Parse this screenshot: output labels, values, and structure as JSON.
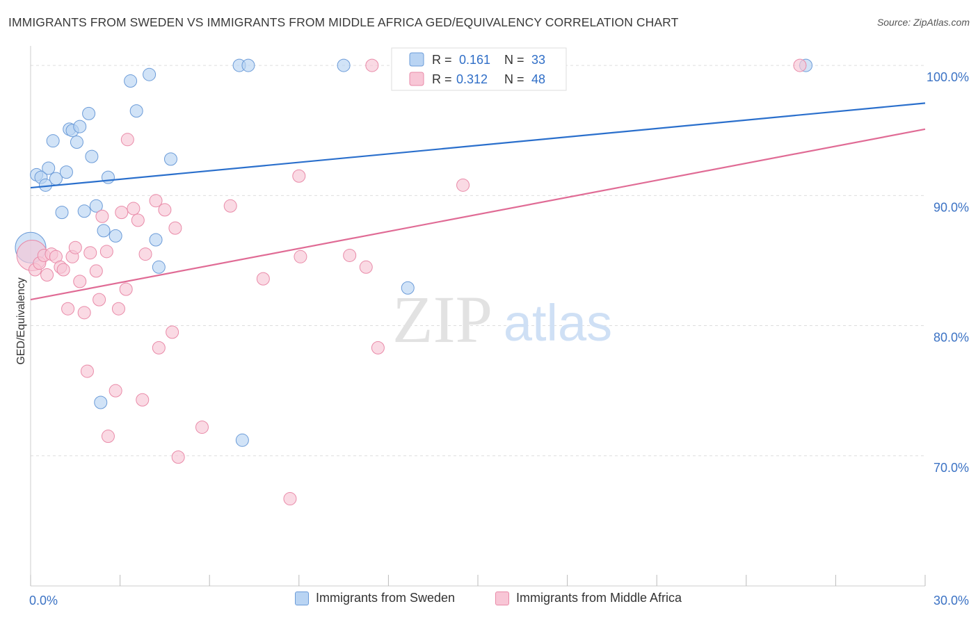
{
  "header": {
    "title": "IMMIGRANTS FROM SWEDEN VS IMMIGRANTS FROM MIDDLE AFRICA GED/EQUIVALENCY CORRELATION CHART",
    "source": "Source: ZipAtlas.com"
  },
  "watermark": {
    "zip": "ZIP",
    "atlas": "atlas"
  },
  "colors": {
    "blue_fill": "#b9d4f3",
    "blue_stroke": "#6b9bd8",
    "blue_line": "#2a6fcc",
    "pink_fill": "#f8c6d6",
    "pink_stroke": "#e98aa8",
    "pink_line": "#e06b95",
    "tick_label": "#3b72c4",
    "grid": "#dddddd"
  },
  "chart_data": {
    "type": "scatter",
    "title": "IMMIGRANTS FROM SWEDEN VS IMMIGRANTS FROM MIDDLE AFRICA GED/EQUIVALENCY CORRELATION CHART",
    "xlabel": "",
    "ylabel": "GED/Equivalency",
    "xlim": [
      0,
      30
    ],
    "ylim": [
      60,
      101.5
    ],
    "x_tick_labels": [
      {
        "value": 0,
        "label": "0.0%"
      },
      {
        "value": 30,
        "label": "30.0%"
      }
    ],
    "y_tick_labels": [
      {
        "value": 70,
        "label": "70.0%"
      },
      {
        "value": 80,
        "label": "80.0%"
      },
      {
        "value": 90,
        "label": "90.0%"
      },
      {
        "value": 100,
        "label": "100.0%"
      }
    ],
    "legend": [
      {
        "series": "Immigrants from Sweden",
        "r_label": "R =",
        "r_value": "0.161",
        "n_label": "N =",
        "n_value": "33"
      },
      {
        "series": "Immigrants from Middle Africa",
        "r_label": "R =",
        "r_value": "0.312",
        "n_label": "N =",
        "n_value": "48"
      }
    ],
    "series": [
      {
        "name": "Immigrants from Sweden",
        "color": "blue",
        "trend": {
          "x": [
            0,
            30
          ],
          "y": [
            90.6,
            97.1
          ]
        },
        "points": [
          {
            "x": 0.0,
            "y": 86.0,
            "big": true
          },
          {
            "x": 0.2,
            "y": 91.6
          },
          {
            "x": 0.35,
            "y": 91.4
          },
          {
            "x": 0.5,
            "y": 90.8
          },
          {
            "x": 0.6,
            "y": 92.1
          },
          {
            "x": 0.75,
            "y": 94.2
          },
          {
            "x": 0.85,
            "y": 91.3
          },
          {
            "x": 1.05,
            "y": 88.7
          },
          {
            "x": 1.2,
            "y": 91.8
          },
          {
            "x": 1.3,
            "y": 95.1
          },
          {
            "x": 1.4,
            "y": 95.0
          },
          {
            "x": 1.55,
            "y": 94.1
          },
          {
            "x": 1.65,
            "y": 95.3
          },
          {
            "x": 1.8,
            "y": 88.8
          },
          {
            "x": 1.95,
            "y": 96.3
          },
          {
            "x": 2.05,
            "y": 93.0
          },
          {
            "x": 2.2,
            "y": 89.2
          },
          {
            "x": 2.35,
            "y": 74.1
          },
          {
            "x": 2.45,
            "y": 87.3
          },
          {
            "x": 2.6,
            "y": 91.4
          },
          {
            "x": 2.85,
            "y": 86.9
          },
          {
            "x": 3.35,
            "y": 98.8
          },
          {
            "x": 3.55,
            "y": 96.5
          },
          {
            "x": 3.98,
            "y": 99.3
          },
          {
            "x": 4.2,
            "y": 86.6
          },
          {
            "x": 4.3,
            "y": 84.5
          },
          {
            "x": 4.7,
            "y": 92.8
          },
          {
            "x": 7.0,
            "y": 100.0
          },
          {
            "x": 7.1,
            "y": 71.2
          },
          {
            "x": 7.3,
            "y": 100.0
          },
          {
            "x": 10.5,
            "y": 100.0
          },
          {
            "x": 12.65,
            "y": 82.9
          },
          {
            "x": 26.0,
            "y": 100.0
          }
        ]
      },
      {
        "name": "Immigrants from Middle Africa",
        "color": "pink",
        "trend": {
          "x": [
            0,
            30
          ],
          "y": [
            82.0,
            95.1
          ]
        },
        "points": [
          {
            "x": 0.05,
            "y": 85.4,
            "big": true
          },
          {
            "x": 0.15,
            "y": 84.3
          },
          {
            "x": 0.3,
            "y": 84.8
          },
          {
            "x": 0.45,
            "y": 85.4
          },
          {
            "x": 0.55,
            "y": 83.9
          },
          {
            "x": 0.7,
            "y": 85.5
          },
          {
            "x": 0.85,
            "y": 85.3
          },
          {
            "x": 1.0,
            "y": 84.5
          },
          {
            "x": 1.1,
            "y": 84.3
          },
          {
            "x": 1.25,
            "y": 81.3
          },
          {
            "x": 1.4,
            "y": 85.3
          },
          {
            "x": 1.5,
            "y": 86.0
          },
          {
            "x": 1.65,
            "y": 83.4
          },
          {
            "x": 1.8,
            "y": 81.0
          },
          {
            "x": 1.9,
            "y": 76.5
          },
          {
            "x": 2.0,
            "y": 85.6
          },
          {
            "x": 2.2,
            "y": 84.2
          },
          {
            "x": 2.3,
            "y": 82.0
          },
          {
            "x": 2.4,
            "y": 88.4
          },
          {
            "x": 2.55,
            "y": 85.7
          },
          {
            "x": 2.6,
            "y": 71.5
          },
          {
            "x": 2.85,
            "y": 75.0
          },
          {
            "x": 2.95,
            "y": 81.3
          },
          {
            "x": 3.05,
            "y": 88.7
          },
          {
            "x": 3.2,
            "y": 82.8
          },
          {
            "x": 3.25,
            "y": 94.3
          },
          {
            "x": 3.45,
            "y": 89.0
          },
          {
            "x": 3.6,
            "y": 88.1
          },
          {
            "x": 3.75,
            "y": 74.3
          },
          {
            "x": 3.85,
            "y": 85.5
          },
          {
            "x": 4.2,
            "y": 89.6
          },
          {
            "x": 4.3,
            "y": 78.3
          },
          {
            "x": 4.5,
            "y": 88.9
          },
          {
            "x": 4.75,
            "y": 79.5
          },
          {
            "x": 4.85,
            "y": 87.5
          },
          {
            "x": 4.95,
            "y": 69.9
          },
          {
            "x": 5.75,
            "y": 72.2
          },
          {
            "x": 6.7,
            "y": 89.2
          },
          {
            "x": 7.8,
            "y": 83.6
          },
          {
            "x": 8.7,
            "y": 66.7
          },
          {
            "x": 9.0,
            "y": 91.5
          },
          {
            "x": 9.05,
            "y": 85.3
          },
          {
            "x": 10.7,
            "y": 85.4
          },
          {
            "x": 11.25,
            "y": 84.5
          },
          {
            "x": 11.45,
            "y": 100.0
          },
          {
            "x": 11.65,
            "y": 78.3
          },
          {
            "x": 14.5,
            "y": 90.8
          },
          {
            "x": 25.8,
            "y": 100.0
          }
        ]
      }
    ]
  }
}
